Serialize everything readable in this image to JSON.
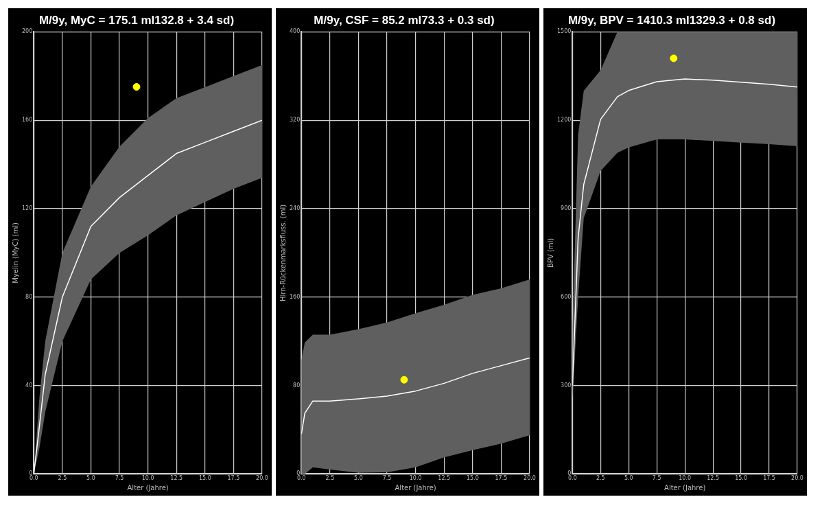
{
  "chart_data": [
    {
      "type": "line",
      "title": "M/9y, MyC = 175.1 ml132.8 + 3.4 sd)",
      "xlabel": "Alter (Jahre)",
      "ylabel": "Myelin (MyC) (ml)",
      "xlim": [
        0,
        20
      ],
      "xticks": [
        {
          "value": 0,
          "label": "0.0"
        },
        {
          "value": 2.5,
          "label": "2.5"
        },
        {
          "value": 5,
          "label": "5.0"
        },
        {
          "value": 7.5,
          "label": "7.5"
        },
        {
          "value": 10,
          "label": "10.0"
        },
        {
          "value": 12.5,
          "label": "12.5"
        },
        {
          "value": 15,
          "label": "15.0"
        },
        {
          "value": 17.5,
          "label": "17.5"
        },
        {
          "value": 20,
          "label": "20.0"
        }
      ],
      "ylim": [
        0,
        200
      ],
      "yticks": [
        0,
        40,
        80,
        120,
        160,
        200
      ],
      "grid": true,
      "legend": false,
      "series": [
        {
          "x": [
            0,
            0.5,
            1,
            2.5,
            5,
            7.5,
            10,
            12.5,
            15,
            17.5,
            20
          ],
          "values": [
            0,
            22,
            45,
            80,
            112,
            125,
            135,
            145,
            150,
            155,
            160
          ],
          "lower": [
            0,
            12,
            28,
            60,
            88,
            100,
            108,
            117,
            123,
            129,
            134
          ],
          "upper": [
            0,
            35,
            60,
            100,
            130,
            148,
            161,
            170,
            175,
            180,
            185
          ],
          "color": "#ffffff",
          "marker": "none"
        },
        {
          "type": "scatter",
          "x": [
            9
          ],
          "values": [
            175.1
          ],
          "color": "#ffff00",
          "marker": "circle"
        }
      ]
    },
    {
      "type": "line",
      "title": "M/9y, CSF = 85.2 ml73.3 + 0.3 sd)",
      "xlabel": "Alter (Jahre)",
      "ylabel": "Hirn-Rückenmarksfluss. (ml)",
      "xlim": [
        0,
        20
      ],
      "xticks": [
        {
          "value": 0,
          "label": "0.0"
        },
        {
          "value": 2.5,
          "label": "2.5"
        },
        {
          "value": 5,
          "label": "5.0"
        },
        {
          "value": 7.5,
          "label": "7.5"
        },
        {
          "value": 10,
          "label": "10.0"
        },
        {
          "value": 12.5,
          "label": "12.5"
        },
        {
          "value": 15,
          "label": "15.0"
        },
        {
          "value": 17.5,
          "label": "17.5"
        },
        {
          "value": 20,
          "label": "20.0"
        }
      ],
      "ylim": [
        0,
        400
      ],
      "yticks": [
        0,
        80,
        160,
        240,
        320,
        400
      ],
      "grid": true,
      "legend": false,
      "series": [
        {
          "x": [
            0,
            0.3,
            1,
            2.5,
            5,
            7.5,
            10,
            12.5,
            15,
            17.5,
            20
          ],
          "values": [
            36,
            55,
            66,
            66,
            68,
            70.5,
            75,
            82,
            91,
            98,
            105
          ],
          "lower": [
            0,
            0,
            6,
            4,
            1,
            1.5,
            6,
            15,
            21.5,
            27.5,
            35
          ],
          "upper": [
            103,
            119,
            126,
            126,
            131,
            137,
            145.5,
            153,
            162,
            168,
            176
          ],
          "color": "#ffffff",
          "marker": "none"
        },
        {
          "type": "scatter",
          "x": [
            9
          ],
          "values": [
            85.2
          ],
          "color": "#ffff00",
          "marker": "circle"
        }
      ]
    },
    {
      "type": "line",
      "title": "M/9y, BPV = 1410.3 ml1329.3 + 0.8 sd)",
      "xlabel": "Alter (Jahre)",
      "ylabel": "BPV (ml)",
      "xlim": [
        0,
        20
      ],
      "xticks": [
        {
          "value": 0,
          "label": "0.0"
        },
        {
          "value": 2.5,
          "label": "2.5"
        },
        {
          "value": 5,
          "label": "5.0"
        },
        {
          "value": 7.5,
          "label": "7.5"
        },
        {
          "value": 10,
          "label": "10.0"
        },
        {
          "value": 12.5,
          "label": "12.5"
        },
        {
          "value": 15,
          "label": "15.0"
        },
        {
          "value": 17.5,
          "label": "17.5"
        },
        {
          "value": 20,
          "label": "20.0"
        }
      ],
      "ylim": [
        0,
        1500
      ],
      "yticks": [
        0,
        300,
        600,
        900,
        1200,
        1500
      ],
      "grid": true,
      "legend": false,
      "series": [
        {
          "x": [
            0,
            0.5,
            1,
            2.5,
            4,
            5,
            7.5,
            10,
            12.5,
            15,
            17.5,
            20
          ],
          "values": [
            300,
            800,
            982,
            1203,
            1280,
            1301,
            1331,
            1340,
            1336,
            1329,
            1322,
            1313
          ],
          "lower": [
            250,
            600,
            868,
            1028,
            1090,
            1108,
            1135,
            1135,
            1130,
            1124,
            1119,
            1112
          ],
          "upper": [
            500,
            1150,
            1300,
            1370,
            1500,
            1500,
            1500,
            1500,
            1500,
            1500,
            1500,
            1500
          ],
          "color": "#ffffff",
          "marker": "none"
        },
        {
          "type": "scatter",
          "x": [
            9
          ],
          "values": [
            1410.3
          ],
          "color": "#ffff00",
          "marker": "circle"
        }
      ]
    }
  ]
}
